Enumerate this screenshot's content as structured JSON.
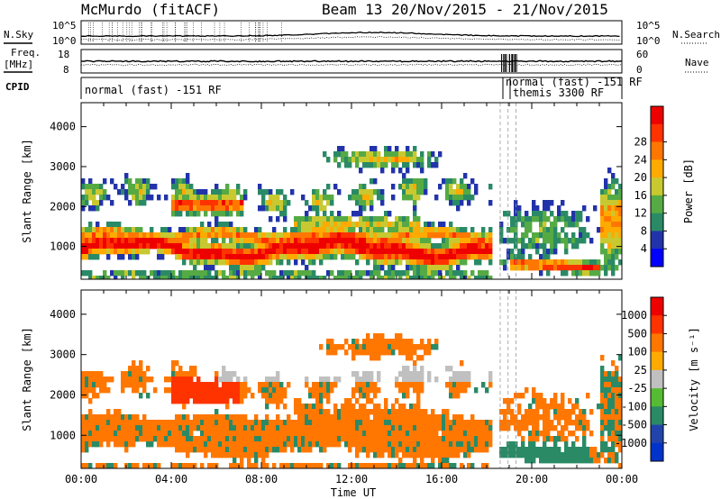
{
  "header": {
    "station": "McMurdo (fitACF)",
    "beam_date": "Beam 13  20/Nov/2015 - 21/Nov/2015"
  },
  "strip_labels": {
    "nsky": "N.Sky",
    "nsearch": "N.Search",
    "freq": "Freq.",
    "freq_unit": "[MHz]",
    "nave": "Nave",
    "cpid": "CPID"
  },
  "strip_ticks": {
    "noise_left": [
      "10^5",
      "10^0"
    ],
    "noise_right": [
      "10^5",
      "10^0"
    ],
    "freq_left": [
      "18",
      "8"
    ],
    "nave_right": [
      "60",
      "0"
    ]
  },
  "cpid_labels": [
    "normal (fast) -151 RF",
    "normal (fast) -151 RF",
    "themis 3300 RF"
  ],
  "chart_data": [
    {
      "type": "heatmap",
      "panel": "power",
      "ylabel": "Slant Range [km]",
      "ylim": [
        180,
        4600
      ],
      "yticks": [
        1000,
        2000,
        3000,
        4000
      ],
      "xlim_hours": [
        0,
        24
      ],
      "xtick_labels": [
        "00:00",
        "04:00",
        "08:00",
        "12:00",
        "16:00",
        "20:00",
        "00:00"
      ],
      "colorbar": {
        "label": "Power [dB]",
        "ticks": [
          "4",
          "8",
          "12",
          "16",
          "20",
          "24",
          "28"
        ],
        "colors": [
          "#0000ff",
          "#2233aa",
          "#2a8a66",
          "#55aa44",
          "#c8c830",
          "#ffaa00",
          "#ff7700",
          "#ff3300",
          "#ee0000"
        ]
      }
    },
    {
      "type": "heatmap",
      "panel": "velocity",
      "ylabel": "Slant Range [km]",
      "ylim": [
        180,
        4600
      ],
      "yticks": [
        1000,
        2000,
        3000,
        4000
      ],
      "xlim_hours": [
        0,
        24
      ],
      "xtick_labels": [
        "00:00",
        "04:00",
        "08:00",
        "12:00",
        "16:00",
        "20:00",
        "00:00"
      ],
      "xlabel": "Time UT",
      "colorbar": {
        "label": "Velocity [m s⁻¹]",
        "ticks": [
          "1000",
          "500",
          "100",
          "25",
          "-25",
          "-100",
          "-500",
          "-1000"
        ],
        "colors": [
          "#0033cc",
          "#2244aa",
          "#2a8a66",
          "#55bb33",
          "#c0c0c0",
          "#ffaa00",
          "#ff7700",
          "#ff3300",
          "#ee0000"
        ]
      }
    }
  ]
}
